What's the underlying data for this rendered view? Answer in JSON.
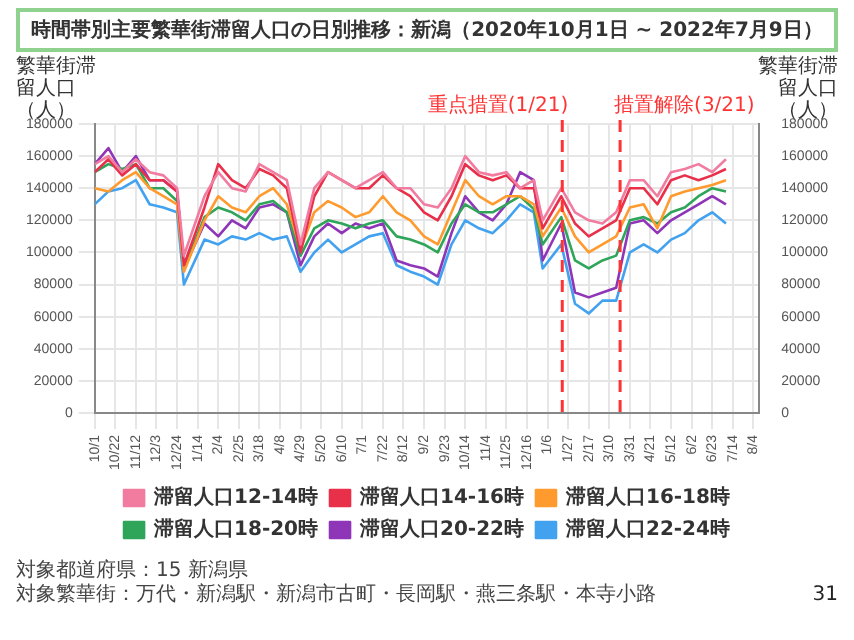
{
  "chart_data": {
    "type": "line",
    "title": "時間帯別主要繁華街滞留人口の日別推移：新潟（2020年10月1日 ~ 2022年7月9日）",
    "ylabel": "繁華街滞留人口（人）",
    "y2label": "繁華街滞留人口（人）",
    "x": [
      "2020-10-01",
      "2020-10-15",
      "2020-10-29",
      "2020-11-12",
      "2020-11-26",
      "2020-12-10",
      "2020-12-24",
      "2020-12-31",
      "2021-01-21",
      "2021-02-04",
      "2021-02-18",
      "2021-03-04",
      "2021-03-18",
      "2021-04-01",
      "2021-04-15",
      "2021-04-29",
      "2021-05-13",
      "2021-05-27",
      "2021-06-10",
      "2021-06-24",
      "2021-07-08",
      "2021-07-22",
      "2021-08-05",
      "2021-08-19",
      "2021-09-02",
      "2021-09-16",
      "2021-09-30",
      "2021-10-14",
      "2021-10-28",
      "2021-11-11",
      "2021-11-25",
      "2021-12-09",
      "2021-12-23",
      "2022-01-01",
      "2022-01-20",
      "2022-02-03",
      "2022-02-17",
      "2022-03-03",
      "2022-03-17",
      "2022-03-31",
      "2022-04-14",
      "2022-04-28",
      "2022-05-12",
      "2022-05-26",
      "2022-06-09",
      "2022-06-23",
      "2022-07-07"
    ],
    "series": [
      {
        "name": "滞留人口12-14時",
        "color": "#f27ba0",
        "values": [
          155000,
          160000,
          150000,
          158000,
          150000,
          148000,
          140000,
          98000,
          135000,
          150000,
          140000,
          138000,
          155000,
          150000,
          145000,
          105000,
          140000,
          150000,
          145000,
          140000,
          145000,
          150000,
          140000,
          140000,
          130000,
          128000,
          140000,
          160000,
          150000,
          148000,
          150000,
          140000,
          145000,
          120000,
          140000,
          125000,
          120000,
          118000,
          125000,
          145000,
          145000,
          135000,
          150000,
          152000,
          155000,
          150000,
          158000
        ]
      },
      {
        "name": "滞留人口14-16時",
        "color": "#e8304a",
        "values": [
          150000,
          158000,
          148000,
          155000,
          145000,
          145000,
          138000,
          92000,
          128000,
          155000,
          145000,
          140000,
          152000,
          148000,
          140000,
          100000,
          135000,
          150000,
          145000,
          140000,
          140000,
          148000,
          140000,
          135000,
          125000,
          120000,
          135000,
          155000,
          148000,
          145000,
          148000,
          140000,
          140000,
          115000,
          135000,
          118000,
          110000,
          115000,
          120000,
          140000,
          140000,
          130000,
          145000,
          148000,
          145000,
          148000,
          152000
        ]
      },
      {
        "name": "滞留人口16-18時",
        "color": "#ff9a2e",
        "values": [
          140000,
          138000,
          145000,
          150000,
          140000,
          135000,
          130000,
          88000,
          120000,
          135000,
          128000,
          125000,
          135000,
          140000,
          130000,
          102000,
          125000,
          132000,
          128000,
          122000,
          125000,
          135000,
          125000,
          120000,
          110000,
          105000,
          125000,
          145000,
          135000,
          130000,
          135000,
          135000,
          130000,
          110000,
          128000,
          110000,
          100000,
          105000,
          110000,
          128000,
          130000,
          115000,
          135000,
          138000,
          140000,
          142000,
          145000
        ]
      },
      {
        "name": "滞留人口18-20時",
        "color": "#2fa55a",
        "values": [
          150000,
          155000,
          152000,
          155000,
          140000,
          140000,
          132000,
          90000,
          122000,
          128000,
          125000,
          120000,
          130000,
          132000,
          125000,
          98000,
          115000,
          120000,
          118000,
          115000,
          118000,
          120000,
          110000,
          108000,
          105000,
          100000,
          118000,
          130000,
          125000,
          125000,
          130000,
          135000,
          127000,
          105000,
          122000,
          95000,
          90000,
          95000,
          98000,
          120000,
          122000,
          118000,
          125000,
          128000,
          135000,
          140000,
          138000
        ]
      },
      {
        "name": "滞留人口20-22時",
        "color": "#8e35b8",
        "values": [
          155000,
          165000,
          150000,
          160000,
          145000,
          145000,
          138000,
          90000,
          118000,
          110000,
          120000,
          115000,
          128000,
          130000,
          125000,
          92000,
          110000,
          118000,
          112000,
          118000,
          115000,
          118000,
          95000,
          92000,
          90000,
          85000,
          112000,
          135000,
          125000,
          120000,
          130000,
          150000,
          145000,
          95000,
          118000,
          75000,
          72000,
          75000,
          78000,
          118000,
          120000,
          112000,
          120000,
          125000,
          130000,
          135000,
          130000
        ]
      },
      {
        "name": "滞留人口22-24時",
        "color": "#42a2f0",
        "values": [
          130000,
          138000,
          140000,
          145000,
          130000,
          128000,
          125000,
          80000,
          108000,
          105000,
          110000,
          108000,
          112000,
          108000,
          110000,
          88000,
          100000,
          108000,
          100000,
          105000,
          110000,
          112000,
          92000,
          88000,
          85000,
          80000,
          105000,
          120000,
          115000,
          112000,
          120000,
          130000,
          125000,
          90000,
          105000,
          68000,
          62000,
          70000,
          70000,
          100000,
          105000,
          100000,
          108000,
          112000,
          120000,
          125000,
          118000
        ]
      }
    ],
    "xlim": [
      "2020-10-01",
      "2022-08-10"
    ],
    "xticks": [
      {
        "value": "2020-10-01",
        "label": "10/1"
      },
      {
        "value": "2020-10-22",
        "label": "10/22"
      },
      {
        "value": "2020-11-12",
        "label": "11/12"
      },
      {
        "value": "2020-12-03",
        "label": "12/3"
      },
      {
        "value": "2020-12-24",
        "label": "12/24"
      },
      {
        "value": "2021-01-14",
        "label": "1/14"
      },
      {
        "value": "2021-02-04",
        "label": "2/4"
      },
      {
        "value": "2021-02-25",
        "label": "2/25"
      },
      {
        "value": "2021-03-18",
        "label": "3/18"
      },
      {
        "value": "2021-04-08",
        "label": "4/8"
      },
      {
        "value": "2021-04-29",
        "label": "4/29"
      },
      {
        "value": "2021-05-20",
        "label": "5/20"
      },
      {
        "value": "2021-06-10",
        "label": "6/10"
      },
      {
        "value": "2021-07-01",
        "label": "7/1"
      },
      {
        "value": "2021-07-22",
        "label": "7/22"
      },
      {
        "value": "2021-08-12",
        "label": "8/12"
      },
      {
        "value": "2021-09-02",
        "label": "9/2"
      },
      {
        "value": "2021-09-23",
        "label": "9/23"
      },
      {
        "value": "2021-10-14",
        "label": "10/14"
      },
      {
        "value": "2021-11-04",
        "label": "11/4"
      },
      {
        "value": "2021-11-25",
        "label": "11/25"
      },
      {
        "value": "2021-12-16",
        "label": "12/16"
      },
      {
        "value": "2022-01-06",
        "label": "1/6"
      },
      {
        "value": "2022-01-27",
        "label": "1/27"
      },
      {
        "value": "2022-02-17",
        "label": "2/17"
      },
      {
        "value": "2022-03-10",
        "label": "3/10"
      },
      {
        "value": "2022-03-31",
        "label": "3/31"
      },
      {
        "value": "2022-04-21",
        "label": "4/21"
      },
      {
        "value": "2022-05-12",
        "label": "5/12"
      },
      {
        "value": "2022-06-02",
        "label": "6/2"
      },
      {
        "value": "2022-06-23",
        "label": "6/23"
      },
      {
        "value": "2022-07-14",
        "label": "7/14"
      },
      {
        "value": "2022-08-04",
        "label": "8/4"
      }
    ],
    "ylim": [
      0,
      180000
    ],
    "yticks": [
      0,
      20000,
      40000,
      60000,
      80000,
      100000,
      120000,
      140000,
      160000,
      180000
    ],
    "y2lim": [
      0,
      180000
    ],
    "y2ticks": [
      0,
      20000,
      40000,
      60000,
      80000,
      100000,
      120000,
      140000,
      160000,
      180000
    ],
    "ref_lines": [
      {
        "axis": "x",
        "value": "2022-01-21",
        "label": "重点措置(1/21)",
        "color": "#ff3333",
        "line_style": "dashed"
      },
      {
        "axis": "x",
        "value": "2022-03-21",
        "label": "措置解除(3/21)",
        "color": "#ff3333",
        "line_style": "dashed"
      }
    ],
    "grid": true,
    "legend": "bottom",
    "marker": "none",
    "line_style": "solid",
    "annotations": [
      "対象都道府県：15 新潟県",
      "対象繁華街：万代・新潟駅・新潟市古町・長岡駅・燕三条駅・本寺小路",
      "31"
    ]
  }
}
